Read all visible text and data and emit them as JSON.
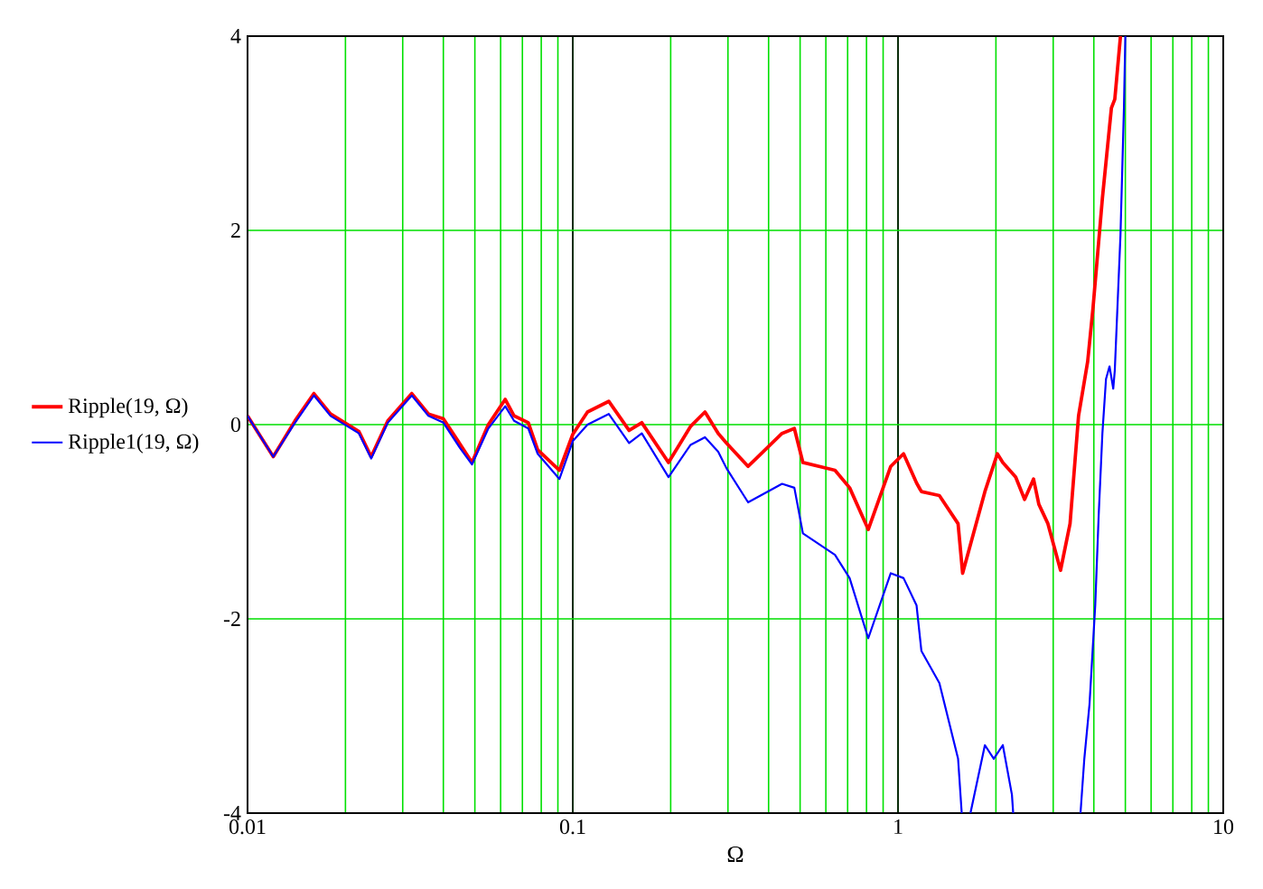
{
  "chart_data": {
    "type": "line",
    "xlabel": "Ω",
    "log": "x",
    "grid": true,
    "legend": "left",
    "xlim": [
      0.01,
      10
    ],
    "ylim": [
      -4,
      4
    ],
    "xticks": [
      0.01,
      0.1,
      1,
      10
    ],
    "yticks": [
      -4,
      -2,
      0,
      2,
      4
    ],
    "series": [
      {
        "name": "Ripple(19, Ω)",
        "color": "#ff0000",
        "x": [
          0.01,
          0.012,
          0.014,
          0.016,
          0.018,
          0.022,
          0.024,
          0.027,
          0.032,
          0.036,
          0.04,
          0.045,
          0.049,
          0.055,
          0.062,
          0.066,
          0.073,
          0.078,
          0.091,
          0.1,
          0.111,
          0.129,
          0.149,
          0.163,
          0.197,
          0.23,
          0.255,
          0.28,
          0.297,
          0.346,
          0.44,
          0.48,
          0.51,
          0.64,
          0.71,
          0.81,
          0.95,
          1.04,
          1.14,
          1.18,
          1.34,
          1.53,
          1.58,
          1.85,
          2.02,
          2.1,
          2.3,
          2.45,
          2.61,
          2.71,
          2.89,
          3.16,
          3.38,
          3.59,
          3.83,
          3.98,
          4.25,
          4.53,
          4.64,
          4.83
        ],
        "values": [
          0.09,
          -0.33,
          0.04,
          0.32,
          0.11,
          -0.07,
          -0.33,
          0.04,
          0.32,
          0.11,
          0.06,
          -0.2,
          -0.39,
          0.0,
          0.26,
          0.09,
          0.02,
          -0.26,
          -0.47,
          -0.1,
          0.13,
          0.24,
          -0.06,
          0.02,
          -0.39,
          -0.02,
          0.13,
          -0.09,
          -0.19,
          -0.43,
          -0.09,
          -0.04,
          -0.39,
          -0.47,
          -0.65,
          -1.08,
          -0.43,
          -0.3,
          -0.6,
          -0.69,
          -0.73,
          -1.02,
          -1.53,
          -0.69,
          -0.3,
          -0.39,
          -0.54,
          -0.77,
          -0.56,
          -0.82,
          -1.02,
          -1.5,
          -1.02,
          0.09,
          0.65,
          1.21,
          2.33,
          3.26,
          3.35,
          4.0
        ]
      },
      {
        "name": "Ripple1(19, Ω)",
        "color": "#0000ff",
        "x": [
          0.01,
          0.012,
          0.014,
          0.016,
          0.018,
          0.022,
          0.024,
          0.027,
          0.032,
          0.036,
          0.04,
          0.045,
          0.049,
          0.055,
          0.062,
          0.066,
          0.073,
          0.078,
          0.091,
          0.1,
          0.111,
          0.129,
          0.149,
          0.163,
          0.197,
          0.23,
          0.255,
          0.28,
          0.297,
          0.346,
          0.44,
          0.48,
          0.51,
          0.64,
          0.71,
          0.81,
          0.95,
          1.04,
          1.14,
          1.18,
          1.34,
          1.53,
          1.57,
          1.62,
          1.67,
          1.85,
          1.97,
          2.1,
          2.24,
          2.26,
          3.0,
          3.64,
          3.74,
          3.88,
          4.04,
          4.14,
          4.25,
          4.36,
          4.47,
          4.59,
          4.64,
          4.83,
          4.95,
          5.0
        ],
        "values": [
          0.09,
          -0.33,
          0.02,
          0.3,
          0.09,
          -0.09,
          -0.35,
          0.02,
          0.3,
          0.09,
          0.02,
          -0.24,
          -0.41,
          -0.04,
          0.19,
          0.04,
          -0.04,
          -0.3,
          -0.56,
          -0.17,
          0.0,
          0.11,
          -0.19,
          -0.09,
          -0.54,
          -0.21,
          -0.13,
          -0.28,
          -0.45,
          -0.8,
          -0.61,
          -0.65,
          -1.12,
          -1.34,
          -1.58,
          -2.2,
          -1.53,
          -1.58,
          -1.86,
          -2.33,
          -2.66,
          -3.44,
          -4.0,
          null,
          -4.0,
          -3.3,
          -3.44,
          -3.3,
          -3.81,
          -4.0,
          null,
          -4.0,
          -3.44,
          -2.88,
          -1.86,
          -0.93,
          -0.09,
          0.47,
          0.6,
          0.37,
          0.56,
          1.95,
          3.26,
          4.0
        ]
      }
    ]
  }
}
